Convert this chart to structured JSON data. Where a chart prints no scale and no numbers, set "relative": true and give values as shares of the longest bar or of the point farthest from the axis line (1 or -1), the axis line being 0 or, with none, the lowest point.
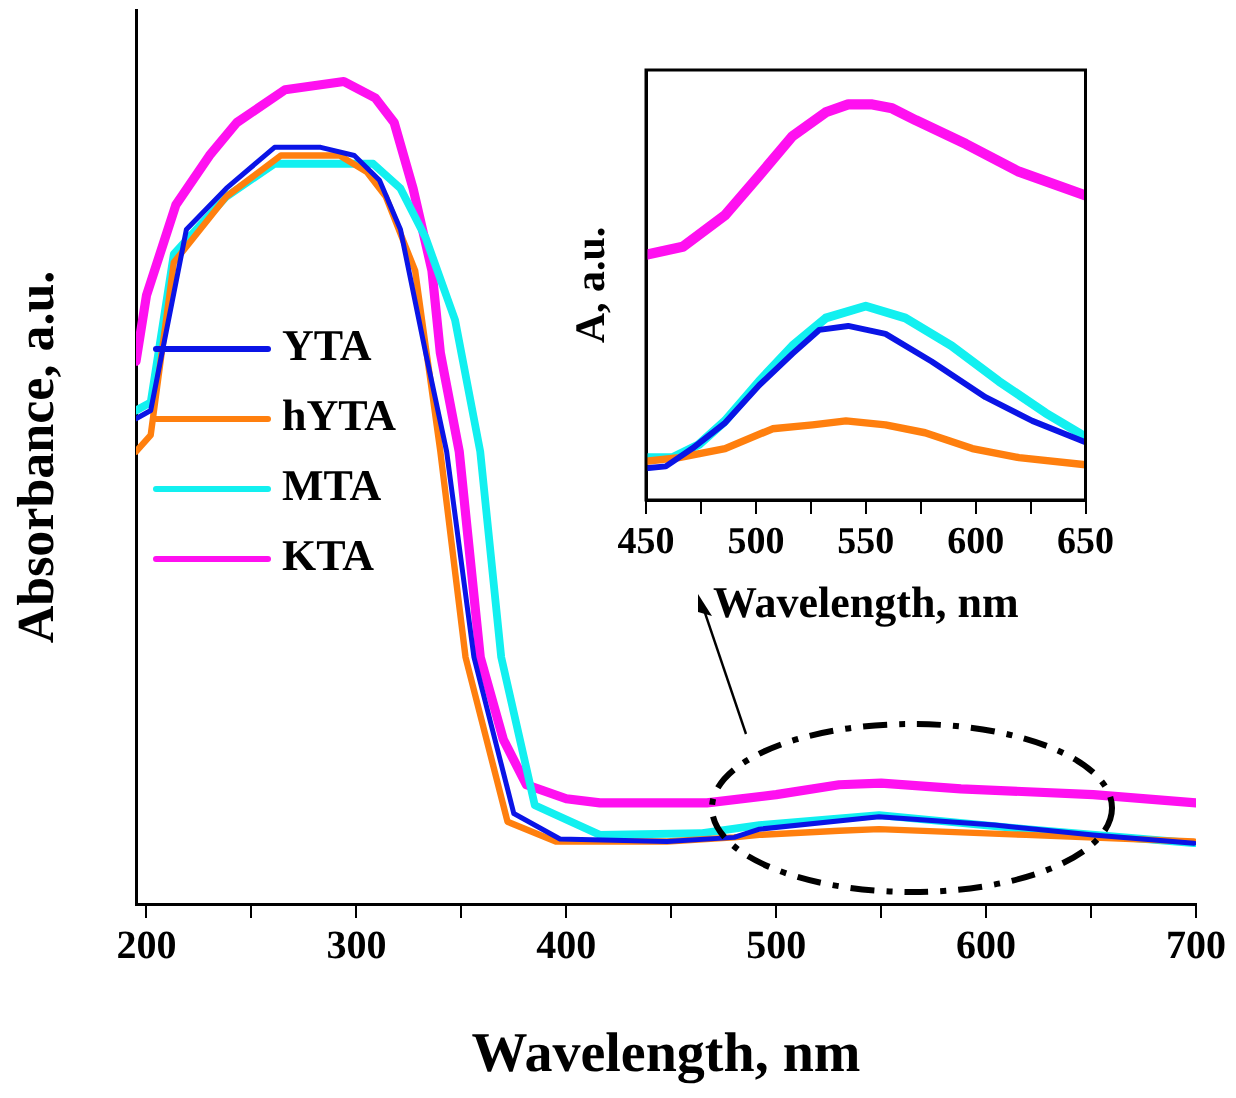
{
  "chart_data": [
    {
      "type": "line",
      "xlabel": "Wavelength, nm",
      "ylabel": "Absorbance, a.u.",
      "relative": true,
      "xlim": [
        195,
        700
      ],
      "xticks": [
        200,
        {
          "value": 250,
          "label": null
        },
        300,
        {
          "value": 350,
          "label": null
        },
        400,
        {
          "value": 450,
          "label": null
        },
        500,
        {
          "value": 550,
          "label": null
        },
        600,
        {
          "value": 650,
          "label": null
        },
        700
      ],
      "legend": "left",
      "grid": false,
      "series": [
        {
          "name": "YTA",
          "color": "#0a14e6",
          "x": [
            195,
            202,
            219,
            238,
            261,
            283,
            299,
            311,
            321,
            333,
            343,
            356,
            375,
            397,
            448,
            480,
            492,
            549,
            604,
            651,
            699
          ],
          "values": [
            0.59,
            0.6,
            0.82,
            0.87,
            0.92,
            0.92,
            0.91,
            0.88,
            0.82,
            0.67,
            0.55,
            0.3,
            0.11,
            0.079,
            0.076,
            0.081,
            0.091,
            0.106,
            0.096,
            0.084,
            0.074
          ]
        },
        {
          "name": "hYTA",
          "color": "#ff7f0e",
          "x": [
            195,
            202,
            213,
            238,
            264,
            292,
            305,
            314,
            328,
            340,
            352,
            372,
            395,
            448,
            480,
            492,
            530,
            549,
            619,
            699
          ],
          "values": [
            0.55,
            0.57,
            0.78,
            0.86,
            0.91,
            0.91,
            0.89,
            0.86,
            0.77,
            0.55,
            0.3,
            0.1,
            0.076,
            0.076,
            0.081,
            0.084,
            0.089,
            0.091,
            0.084,
            0.076
          ]
        },
        {
          "name": "MTA",
          "color": "#12f0f0",
          "x": [
            195,
            202,
            213,
            238,
            261,
            283,
            292,
            308,
            321,
            333,
            347,
            359,
            369,
            385,
            416,
            464,
            492,
            549,
            619,
            699
          ],
          "values": [
            0.6,
            0.61,
            0.79,
            0.86,
            0.9,
            0.9,
            0.9,
            0.9,
            0.87,
            0.81,
            0.71,
            0.55,
            0.3,
            0.12,
            0.084,
            0.086,
            0.096,
            0.108,
            0.091,
            0.074
          ]
        },
        {
          "name": "KTA",
          "color": "#ff10f0",
          "x": [
            195,
            200,
            214,
            230,
            243,
            266,
            294,
            309,
            318,
            327,
            336,
            340,
            349,
            359,
            370,
            381,
            400,
            416,
            467,
            500,
            530,
            550,
            588,
            651,
            700
          ],
          "values": [
            0.66,
            0.74,
            0.85,
            0.91,
            0.95,
            0.99,
            1,
            0.98,
            0.95,
            0.87,
            0.77,
            0.67,
            0.55,
            0.3,
            0.2,
            0.145,
            0.128,
            0.123,
            0.123,
            0.133,
            0.145,
            0.147,
            0.14,
            0.133,
            0.123
          ]
        }
      ]
    },
    {
      "type": "line",
      "xlabel": "Wavelength, nm",
      "ylabel": "A, a.u.",
      "relative": true,
      "xlim": [
        450,
        650
      ],
      "xticks": [
        450,
        {
          "value": 475,
          "label": null
        },
        500,
        {
          "value": 525,
          "label": null
        },
        550,
        {
          "value": 575,
          "label": null
        },
        600,
        {
          "value": 625,
          "label": null
        },
        650
      ],
      "grid": false,
      "series": [
        {
          "color": "#0a14e6",
          "x": [
            450,
            459,
            471,
            486,
            501.5,
            516.7,
            528.8,
            542,
            559,
            580,
            604.5,
            625.8,
            650
          ],
          "values": [
            0.08,
            0.085,
            0.13,
            0.195,
            0.29,
            0.37,
            0.43,
            0.44,
            0.42,
            0.35,
            0.26,
            0.2,
            0.146
          ]
        },
        {
          "color": "#ff7f0e",
          "x": [
            450,
            465,
            486,
            507.6,
            525.8,
            541,
            559,
            577,
            598.5,
            619.7,
            650
          ],
          "values": [
            0.098,
            0.107,
            0.13,
            0.18,
            0.19,
            0.2,
            0.19,
            0.17,
            0.13,
            0.107,
            0.089
          ]
        },
        {
          "color": "#12f0f0",
          "x": [
            450,
            462,
            474,
            486,
            501.5,
            516.7,
            531.8,
            550,
            568,
            589,
            610.6,
            631.8,
            650
          ],
          "values": [
            0.107,
            0.107,
            0.14,
            0.2,
            0.3,
            0.39,
            0.46,
            0.49,
            0.46,
            0.39,
            0.3,
            0.22,
            0.16
          ]
        },
        {
          "color": "#ff10f0",
          "x": [
            450,
            466.7,
            486,
            501.5,
            516.7,
            531.8,
            542,
            553,
            562,
            572.7,
            595.5,
            619.7,
            650
          ],
          "values": [
            0.62,
            0.64,
            0.72,
            0.82,
            0.92,
            0.98,
            1,
            1,
            0.99,
            0.96,
            0.9,
            0.83,
            0.77
          ]
        }
      ]
    }
  ]
}
